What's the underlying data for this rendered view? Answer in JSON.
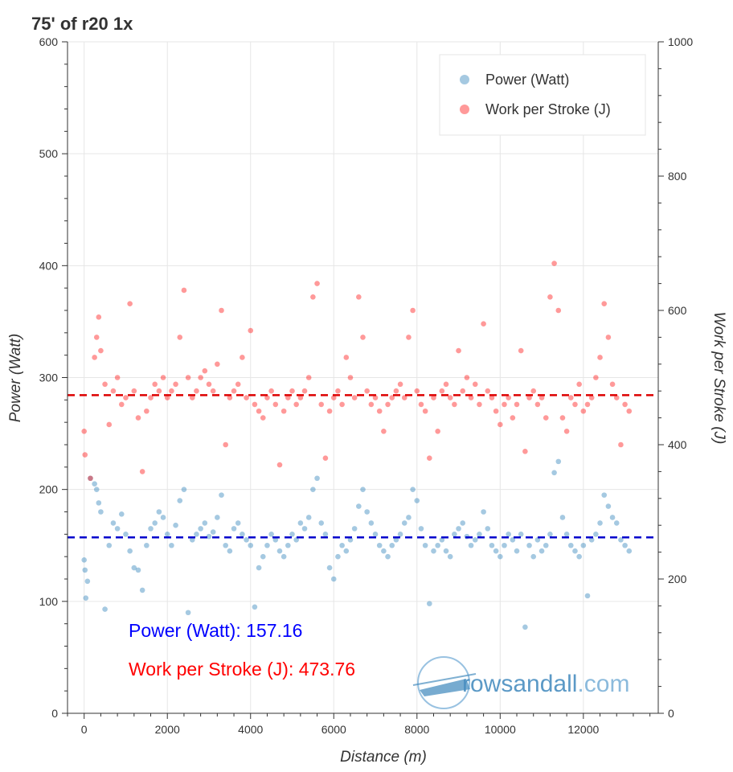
{
  "chart_data": {
    "type": "scatter",
    "title": "75' of r20 1x",
    "xlabel": "Distance (m)",
    "ylabel": "Power (Watt)",
    "y2label": "Work per Stroke (J)",
    "xlim": [
      -400,
      13800
    ],
    "ylim": [
      0,
      600
    ],
    "y2lim": [
      0,
      1000
    ],
    "xticks": [
      0,
      2000,
      4000,
      6000,
      8000,
      10000,
      12000
    ],
    "yticks": [
      0,
      100,
      200,
      300,
      400,
      500,
      600
    ],
    "y2ticks": [
      0,
      200,
      400,
      600,
      800,
      1000
    ],
    "grid": true,
    "legend_position": "top-right",
    "series": [
      {
        "name": "Power (Watt)",
        "axis": "left",
        "color": "#1f77b4",
        "mean": 157.16,
        "points": [
          [
            0,
            137
          ],
          [
            20,
            128
          ],
          [
            40,
            103
          ],
          [
            80,
            118
          ],
          [
            150,
            210
          ],
          [
            250,
            205
          ],
          [
            300,
            200
          ],
          [
            350,
            188
          ],
          [
            400,
            180
          ],
          [
            500,
            93
          ],
          [
            600,
            150
          ],
          [
            700,
            170
          ],
          [
            800,
            165
          ],
          [
            900,
            178
          ],
          [
            1000,
            160
          ],
          [
            1100,
            145
          ],
          [
            1200,
            130
          ],
          [
            1300,
            128
          ],
          [
            1400,
            110
          ],
          [
            1500,
            150
          ],
          [
            1600,
            165
          ],
          [
            1700,
            170
          ],
          [
            1800,
            180
          ],
          [
            1900,
            175
          ],
          [
            2000,
            160
          ],
          [
            2100,
            150
          ],
          [
            2200,
            168
          ],
          [
            2300,
            190
          ],
          [
            2400,
            200
          ],
          [
            2500,
            90
          ],
          [
            2600,
            155
          ],
          [
            2700,
            160
          ],
          [
            2800,
            165
          ],
          [
            2900,
            170
          ],
          [
            3000,
            158
          ],
          [
            3100,
            162
          ],
          [
            3200,
            175
          ],
          [
            3300,
            195
          ],
          [
            3400,
            150
          ],
          [
            3500,
            145
          ],
          [
            3600,
            165
          ],
          [
            3700,
            170
          ],
          [
            3800,
            160
          ],
          [
            3900,
            155
          ],
          [
            4000,
            150
          ],
          [
            4100,
            95
          ],
          [
            4200,
            130
          ],
          [
            4300,
            140
          ],
          [
            4400,
            150
          ],
          [
            4500,
            160
          ],
          [
            4600,
            155
          ],
          [
            4700,
            145
          ],
          [
            4800,
            140
          ],
          [
            4900,
            150
          ],
          [
            5000,
            160
          ],
          [
            5100,
            155
          ],
          [
            5200,
            170
          ],
          [
            5300,
            165
          ],
          [
            5400,
            175
          ],
          [
            5500,
            200
          ],
          [
            5600,
            210
          ],
          [
            5700,
            170
          ],
          [
            5800,
            160
          ],
          [
            5900,
            130
          ],
          [
            6000,
            120
          ],
          [
            6100,
            140
          ],
          [
            6200,
            150
          ],
          [
            6300,
            145
          ],
          [
            6400,
            155
          ],
          [
            6500,
            165
          ],
          [
            6600,
            185
          ],
          [
            6700,
            200
          ],
          [
            6800,
            180
          ],
          [
            6900,
            170
          ],
          [
            7000,
            160
          ],
          [
            7100,
            150
          ],
          [
            7200,
            145
          ],
          [
            7300,
            140
          ],
          [
            7400,
            150
          ],
          [
            7500,
            155
          ],
          [
            7600,
            160
          ],
          [
            7700,
            170
          ],
          [
            7800,
            175
          ],
          [
            7900,
            200
          ],
          [
            8000,
            190
          ],
          [
            8100,
            165
          ],
          [
            8200,
            150
          ],
          [
            8300,
            98
          ],
          [
            8400,
            145
          ],
          [
            8500,
            150
          ],
          [
            8600,
            155
          ],
          [
            8700,
            145
          ],
          [
            8800,
            140
          ],
          [
            8900,
            160
          ],
          [
            9000,
            165
          ],
          [
            9100,
            170
          ],
          [
            9200,
            158
          ],
          [
            9300,
            150
          ],
          [
            9400,
            155
          ],
          [
            9500,
            160
          ],
          [
            9600,
            180
          ],
          [
            9700,
            165
          ],
          [
            9800,
            150
          ],
          [
            9900,
            145
          ],
          [
            10000,
            140
          ],
          [
            10100,
            150
          ],
          [
            10200,
            160
          ],
          [
            10300,
            155
          ],
          [
            10400,
            145
          ],
          [
            10500,
            160
          ],
          [
            10600,
            77
          ],
          [
            10700,
            150
          ],
          [
            10800,
            140
          ],
          [
            10900,
            155
          ],
          [
            11000,
            145
          ],
          [
            11100,
            150
          ],
          [
            11200,
            160
          ],
          [
            11300,
            215
          ],
          [
            11400,
            225
          ],
          [
            11500,
            175
          ],
          [
            11600,
            160
          ],
          [
            11700,
            150
          ],
          [
            11800,
            145
          ],
          [
            11900,
            140
          ],
          [
            12000,
            150
          ],
          [
            12100,
            105
          ],
          [
            12200,
            155
          ],
          [
            12300,
            160
          ],
          [
            12400,
            170
          ],
          [
            12500,
            195
          ],
          [
            12600,
            185
          ],
          [
            12700,
            175
          ],
          [
            12800,
            170
          ],
          [
            12900,
            155
          ],
          [
            13000,
            150
          ],
          [
            13100,
            145
          ]
        ]
      },
      {
        "name": "Work per Stroke (J)",
        "axis": "right",
        "color": "#ff0000",
        "mean": 473.76,
        "points": [
          [
            0,
            420
          ],
          [
            20,
            385
          ],
          [
            150,
            350
          ],
          [
            250,
            530
          ],
          [
            300,
            560
          ],
          [
            350,
            590
          ],
          [
            400,
            540
          ],
          [
            500,
            490
          ],
          [
            600,
            430
          ],
          [
            700,
            480
          ],
          [
            800,
            500
          ],
          [
            900,
            460
          ],
          [
            1000,
            470
          ],
          [
            1100,
            610
          ],
          [
            1200,
            480
          ],
          [
            1300,
            440
          ],
          [
            1400,
            360
          ],
          [
            1500,
            450
          ],
          [
            1600,
            470
          ],
          [
            1700,
            490
          ],
          [
            1800,
            480
          ],
          [
            1900,
            500
          ],
          [
            2000,
            470
          ],
          [
            2100,
            480
          ],
          [
            2200,
            490
          ],
          [
            2300,
            560
          ],
          [
            2400,
            630
          ],
          [
            2500,
            500
          ],
          [
            2600,
            470
          ],
          [
            2700,
            480
          ],
          [
            2800,
            500
          ],
          [
            2900,
            510
          ],
          [
            3000,
            490
          ],
          [
            3100,
            480
          ],
          [
            3200,
            520
          ],
          [
            3300,
            600
          ],
          [
            3400,
            400
          ],
          [
            3500,
            470
          ],
          [
            3600,
            480
          ],
          [
            3700,
            490
          ],
          [
            3800,
            530
          ],
          [
            3900,
            470
          ],
          [
            4000,
            570
          ],
          [
            4100,
            460
          ],
          [
            4200,
            450
          ],
          [
            4300,
            440
          ],
          [
            4400,
            470
          ],
          [
            4500,
            480
          ],
          [
            4600,
            460
          ],
          [
            4700,
            370
          ],
          [
            4800,
            450
          ],
          [
            4900,
            470
          ],
          [
            5000,
            480
          ],
          [
            5100,
            460
          ],
          [
            5200,
            470
          ],
          [
            5300,
            480
          ],
          [
            5400,
            500
          ],
          [
            5500,
            620
          ],
          [
            5600,
            640
          ],
          [
            5700,
            460
          ],
          [
            5800,
            380
          ],
          [
            5900,
            450
          ],
          [
            6000,
            470
          ],
          [
            6100,
            480
          ],
          [
            6200,
            460
          ],
          [
            6300,
            530
          ],
          [
            6400,
            500
          ],
          [
            6500,
            470
          ],
          [
            6600,
            620
          ],
          [
            6700,
            560
          ],
          [
            6800,
            480
          ],
          [
            6900,
            460
          ],
          [
            7000,
            470
          ],
          [
            7100,
            450
          ],
          [
            7200,
            420
          ],
          [
            7300,
            460
          ],
          [
            7400,
            470
          ],
          [
            7500,
            480
          ],
          [
            7600,
            490
          ],
          [
            7700,
            470
          ],
          [
            7800,
            560
          ],
          [
            7900,
            600
          ],
          [
            8000,
            480
          ],
          [
            8100,
            460
          ],
          [
            8200,
            450
          ],
          [
            8300,
            380
          ],
          [
            8400,
            470
          ],
          [
            8500,
            420
          ],
          [
            8600,
            480
          ],
          [
            8700,
            490
          ],
          [
            8800,
            470
          ],
          [
            8900,
            460
          ],
          [
            9000,
            540
          ],
          [
            9100,
            480
          ],
          [
            9200,
            500
          ],
          [
            9300,
            470
          ],
          [
            9400,
            490
          ],
          [
            9500,
            460
          ],
          [
            9600,
            580
          ],
          [
            9700,
            480
          ],
          [
            9800,
            470
          ],
          [
            9900,
            450
          ],
          [
            10000,
            430
          ],
          [
            10100,
            460
          ],
          [
            10200,
            470
          ],
          [
            10300,
            440
          ],
          [
            10400,
            460
          ],
          [
            10500,
            540
          ],
          [
            10600,
            390
          ],
          [
            10700,
            470
          ],
          [
            10800,
            480
          ],
          [
            10900,
            460
          ],
          [
            11000,
            470
          ],
          [
            11100,
            440
          ],
          [
            11200,
            620
          ],
          [
            11300,
            670
          ],
          [
            11400,
            600
          ],
          [
            11500,
            440
          ],
          [
            11600,
            420
          ],
          [
            11700,
            470
          ],
          [
            11800,
            460
          ],
          [
            11900,
            490
          ],
          [
            12000,
            450
          ],
          [
            12100,
            460
          ],
          [
            12200,
            470
          ],
          [
            12300,
            500
          ],
          [
            12400,
            530
          ],
          [
            12500,
            610
          ],
          [
            12600,
            560
          ],
          [
            12700,
            490
          ],
          [
            12800,
            470
          ],
          [
            12900,
            400
          ],
          [
            13000,
            460
          ],
          [
            13100,
            450
          ]
        ]
      }
    ],
    "annotations": [
      {
        "label": "Power (Watt): 157.16",
        "color": "#0000ff"
      },
      {
        "label": "Work per Stroke (J): 473.76",
        "color": "#ff0000"
      }
    ]
  },
  "watermark": {
    "text_part1": "rowsandall",
    "text_part2": ".com",
    "color1": "#4a8fc0",
    "color2": "#7fb3d9"
  },
  "colors": {
    "power": "#1f77b4",
    "work": "#ff0000",
    "power_mean_line": "#0000cc",
    "work_mean_line": "#dd0000"
  }
}
